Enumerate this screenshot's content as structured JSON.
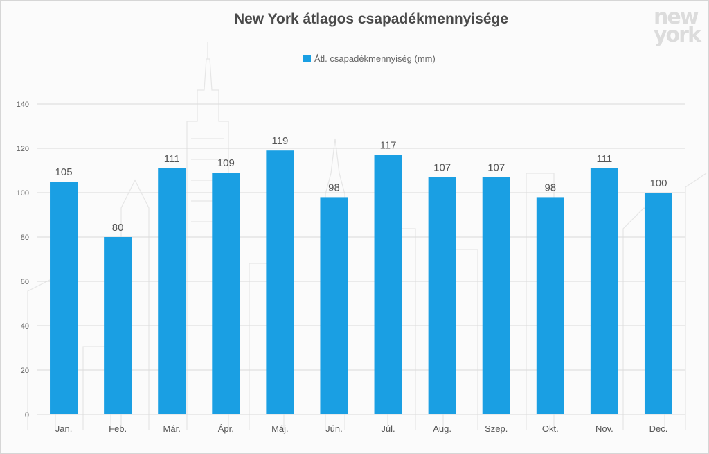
{
  "title": "New York átlagos csapadékmennyisége",
  "logo_text": "new york",
  "colors": {
    "bar": "#1a9fe3",
    "grid": "#d9d9d9",
    "title": "#4a4a4a"
  },
  "legend": {
    "label": "Átl. csapadékmennyiség (mm)"
  },
  "chart_data": {
    "type": "bar",
    "title": "New York átlagos csapadékmennyisége",
    "categories": [
      "Jan.",
      "Feb.",
      "Már.",
      "Ápr.",
      "Máj.",
      "Jún.",
      "Júl.",
      "Aug.",
      "Szep.",
      "Okt.",
      "Nov.",
      "Dec."
    ],
    "series": [
      {
        "name": "Átl. csapadékmennyiség (mm)",
        "values": [
          105,
          80,
          111,
          109,
          119,
          98,
          117,
          107,
          107,
          98,
          111,
          100
        ]
      }
    ],
    "ylim": [
      0,
      140
    ],
    "yticks": [
      0,
      20,
      40,
      60,
      80,
      100,
      120,
      140
    ],
    "grid": true,
    "legend_position": "top-center",
    "data_labels": true
  }
}
